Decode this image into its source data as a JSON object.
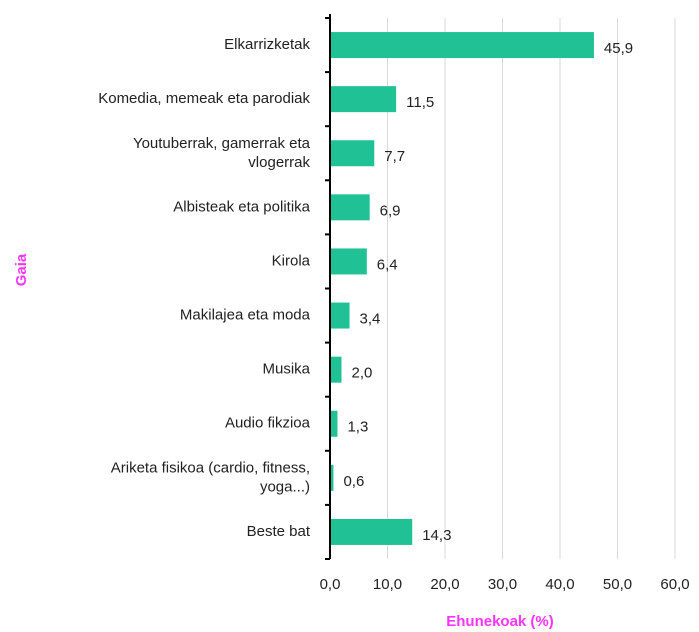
{
  "chart_data": {
    "type": "bar",
    "orientation": "horizontal",
    "x_label": "Ehunekoak (%)",
    "y_label": "Gaia",
    "categories": [
      "Elkarrizketak",
      "Komedia, memeak eta parodiak",
      "Youtuberrak, gamerrak eta\nvlogerrak",
      "Albisteak eta politika",
      "Kirola",
      "Makilajea eta moda",
      "Musika",
      "Audio fikzioa",
      "Ariketa fisikoa (cardio, fitness,\nyoga...)",
      "Beste bat"
    ],
    "values": [
      45.9,
      11.5,
      7.7,
      6.9,
      6.4,
      3.4,
      2.0,
      1.3,
      0.6,
      14.3
    ],
    "value_labels": [
      "45,9",
      "11,5",
      "7,7",
      "6,9",
      "6,4",
      "3,4",
      "2,0",
      "1,3",
      "0,6",
      "14,3"
    ],
    "color": "#21c196",
    "label_color": "#ff33ff",
    "xlim": [
      0,
      60
    ],
    "xticks": [
      {
        "value": 0,
        "label": "0,0"
      },
      {
        "value": 10,
        "label": "10,0"
      },
      {
        "value": 20,
        "label": "20,0"
      },
      {
        "value": 30,
        "label": "30,0"
      },
      {
        "value": 40,
        "label": "40,0"
      },
      {
        "value": 50,
        "label": "50,0"
      },
      {
        "value": 60,
        "label": "60,0"
      }
    ],
    "grid": true
  }
}
